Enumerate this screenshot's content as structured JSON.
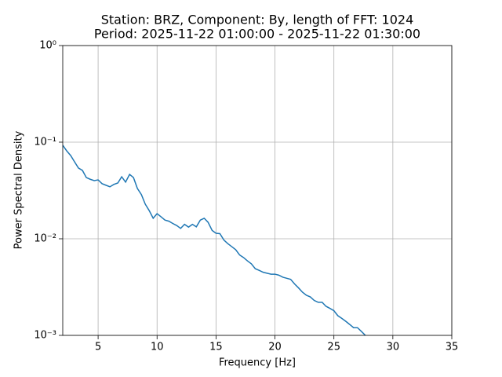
{
  "chart_data": {
    "type": "line",
    "title": "Station: BRZ, Component: By, length of FFT: 1024",
    "subtitle": "Period: 2025-11-22 01:00:00 - 2025-11-22 01:30:00",
    "x_label": "Frequency [Hz]",
    "y_label": "Power Spectral Density",
    "yscale": "log",
    "grid": true,
    "xlim": [
      2,
      35
    ],
    "ylim": [
      0.001,
      1
    ],
    "xticks": [
      5,
      10,
      15,
      20,
      25,
      30,
      35
    ],
    "yticks": [
      {
        "value": 0.001,
        "label": "10⁻³"
      },
      {
        "value": 0.01,
        "label": "10⁻²"
      },
      {
        "value": 0.1,
        "label": "10⁻¹"
      },
      {
        "value": 1,
        "label": "10⁰"
      }
    ],
    "x": [
      2,
      2.33,
      2.67,
      3,
      3.33,
      3.67,
      4,
      4.33,
      4.67,
      5,
      5.33,
      5.67,
      6,
      6.33,
      6.67,
      7,
      7.33,
      7.67,
      8,
      8.33,
      8.67,
      9,
      9.33,
      9.67,
      10,
      10.33,
      10.67,
      11,
      11.33,
      11.67,
      12,
      12.33,
      12.67,
      13,
      13.33,
      13.67,
      14,
      14.33,
      14.67,
      15,
      15.33,
      15.67,
      16,
      16.33,
      16.67,
      17,
      17.33,
      17.67,
      18,
      18.33,
      18.67,
      19,
      19.33,
      19.67,
      20,
      20.33,
      20.67,
      21,
      21.33,
      21.67,
      22,
      22.33,
      22.67,
      23,
      23.33,
      23.67,
      24,
      24.33,
      24.67,
      25,
      25.33,
      25.67,
      26,
      26.33,
      26.67,
      27,
      27.33,
      27.67
    ],
    "series": [
      {
        "color": "#1f77b4",
        "values": [
          0.0928,
          0.0814,
          0.0728,
          0.0626,
          0.054,
          0.051,
          0.043,
          0.0413,
          0.04,
          0.0407,
          0.0372,
          0.0358,
          0.0345,
          0.0365,
          0.0378,
          0.0438,
          0.0386,
          0.0464,
          0.043,
          0.0332,
          0.0287,
          0.0228,
          0.0196,
          0.0163,
          0.0182,
          0.0169,
          0.0156,
          0.0152,
          0.0144,
          0.0137,
          0.0128,
          0.0141,
          0.0132,
          0.0141,
          0.0133,
          0.0156,
          0.0163,
          0.0148,
          0.0122,
          0.0114,
          0.0113,
          0.0097,
          0.0089,
          0.0083,
          0.0077,
          0.0068,
          0.0064,
          0.0059,
          0.0055,
          0.0049,
          0.0047,
          0.0045,
          0.0044,
          0.0043,
          0.0043,
          0.0042,
          0.004,
          0.0039,
          0.0038,
          0.0034,
          0.0031,
          0.0028,
          0.0026,
          0.0025,
          0.0023,
          0.0022,
          0.0022,
          0.002,
          0.0019,
          0.0018,
          0.0016,
          0.0015,
          0.0014,
          0.0013,
          0.0012,
          0.0012,
          0.0011,
          0.001
        ]
      }
    ]
  }
}
